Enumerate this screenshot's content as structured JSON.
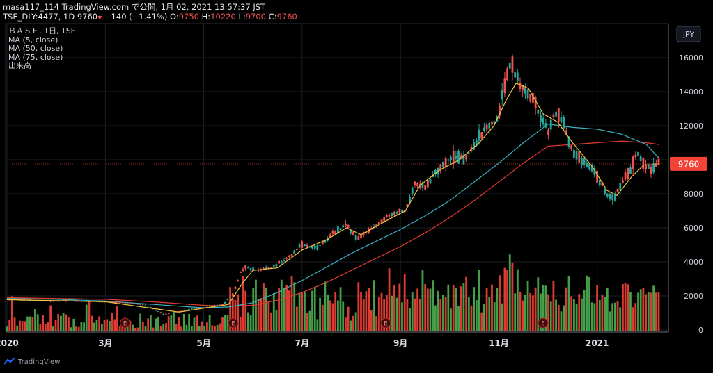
{
  "header": {
    "line1": "masa117_114 TradingView.com で公開, 1月 02, 2021 13:57:37 JST",
    "symbol": "TSE_DLY:4477, 1D 9760",
    "change": "−140 (−1.41%)",
    "o_label": "O:",
    "o_value": "9750",
    "h_label": "H:",
    "h_value": "10220",
    "l_label": "L:",
    "l_value": "9700",
    "c_label": "C:",
    "c_value": "9760"
  },
  "legend": {
    "title": "ＢＡＳＥ, 1日, TSE",
    "ma5": "MA (5, close)",
    "ma50": "MA (50, close)",
    "ma75": "MA (75, close)",
    "volume": "出来高"
  },
  "footer": {
    "brand": "TradingView"
  },
  "colors": {
    "up": "#26a69a",
    "down": "#ef5350",
    "vol_up": "#4caf50",
    "vol_down": "#f44336",
    "ma5": "#f5c842",
    "ma50": "#3bb3c3",
    "ma75": "#e53935",
    "grid": "#1c1f26",
    "price_tag": "#f44336"
  },
  "chart_data": {
    "type": "candlestick",
    "currency": "JPY",
    "last_price": 9760,
    "last_price_label": "9760",
    "x_ticks": [
      {
        "label": "2020",
        "month": 0
      },
      {
        "label": "3月",
        "month": 2
      },
      {
        "label": "5月",
        "month": 4
      },
      {
        "label": "7月",
        "month": 6
      },
      {
        "label": "9月",
        "month": 8
      },
      {
        "label": "11月",
        "month": 10
      },
      {
        "label": "2021",
        "month": 12
      }
    ],
    "y_ticks": [
      "16000",
      "14000",
      "12000",
      "10000",
      "8000",
      "6000",
      "4000",
      "2000",
      "0"
    ],
    "ylim": [
      0,
      18000
    ],
    "earnings_markers": [
      {
        "label": "E",
        "month": 2.4
      },
      {
        "label": "E",
        "month": 4.6
      },
      {
        "label": "E",
        "month": 7.7
      },
      {
        "label": "E",
        "month": 10.9
      }
    ],
    "price_path": [
      [
        0,
        1800
      ],
      [
        0.4,
        1750
      ],
      [
        0.8,
        1700
      ],
      [
        1.2,
        1720
      ],
      [
        1.6,
        1700
      ],
      [
        2.0,
        1650
      ],
      [
        2.4,
        1600
      ],
      [
        2.8,
        1500
      ],
      [
        3.0,
        1200
      ],
      [
        3.2,
        900
      ],
      [
        3.5,
        1100
      ],
      [
        3.8,
        1250
      ],
      [
        4.1,
        1350
      ],
      [
        4.4,
        1500
      ],
      [
        4.6,
        2100
      ],
      [
        4.75,
        3400
      ],
      [
        4.85,
        3700
      ],
      [
        5.1,
        3500
      ],
      [
        5.4,
        3700
      ],
      [
        5.7,
        4200
      ],
      [
        6.0,
        5000
      ],
      [
        6.3,
        4800
      ],
      [
        6.6,
        5600
      ],
      [
        6.9,
        6200
      ],
      [
        7.1,
        5400
      ],
      [
        7.4,
        5900
      ],
      [
        7.7,
        6600
      ],
      [
        7.9,
        6900
      ],
      [
        8.1,
        7000
      ],
      [
        8.3,
        8700
      ],
      [
        8.5,
        8400
      ],
      [
        8.7,
        9200
      ],
      [
        8.9,
        9800
      ],
      [
        9.1,
        10200
      ],
      [
        9.3,
        10100
      ],
      [
        9.5,
        10800
      ],
      [
        9.7,
        11800
      ],
      [
        9.9,
        12200
      ],
      [
        10.0,
        12700
      ],
      [
        10.1,
        14200
      ],
      [
        10.25,
        16000
      ],
      [
        10.35,
        14800
      ],
      [
        10.5,
        14100
      ],
      [
        10.7,
        13600
      ],
      [
        10.85,
        12500
      ],
      [
        11.0,
        11700
      ],
      [
        11.15,
        12800
      ],
      [
        11.3,
        12400
      ],
      [
        11.45,
        10800
      ],
      [
        11.6,
        10200
      ],
      [
        11.75,
        9800
      ],
      [
        11.9,
        9400
      ],
      [
        12.05,
        8800
      ],
      [
        12.2,
        7900
      ],
      [
        12.35,
        7700
      ],
      [
        12.5,
        8700
      ],
      [
        12.65,
        9300
      ],
      [
        12.8,
        10400
      ],
      [
        12.95,
        9800
      ],
      [
        13.1,
        9400
      ],
      [
        13.25,
        9760
      ]
    ],
    "ma5_path": [
      [
        0,
        1780
      ],
      [
        1,
        1720
      ],
      [
        2,
        1660
      ],
      [
        3,
        1250
      ],
      [
        3.5,
        1050
      ],
      [
        4.1,
        1320
      ],
      [
        4.5,
        1500
      ],
      [
        4.8,
        2800
      ],
      [
        5.0,
        3500
      ],
      [
        5.5,
        3650
      ],
      [
        6.0,
        4700
      ],
      [
        6.5,
        5300
      ],
      [
        6.9,
        6000
      ],
      [
        7.2,
        5600
      ],
      [
        7.7,
        6400
      ],
      [
        8.1,
        7000
      ],
      [
        8.4,
        8500
      ],
      [
        8.8,
        9400
      ],
      [
        9.2,
        10000
      ],
      [
        9.6,
        11000
      ],
      [
        9.9,
        12000
      ],
      [
        10.15,
        13500
      ],
      [
        10.35,
        14500
      ],
      [
        10.6,
        14200
      ],
      [
        10.9,
        12700
      ],
      [
        11.2,
        12200
      ],
      [
        11.5,
        11000
      ],
      [
        11.9,
        9600
      ],
      [
        12.2,
        8200
      ],
      [
        12.4,
        7900
      ],
      [
        12.7,
        9000
      ],
      [
        12.95,
        9700
      ],
      [
        13.25,
        9700
      ]
    ],
    "ma50_path": [
      [
        0,
        1850
      ],
      [
        1,
        1800
      ],
      [
        2,
        1700
      ],
      [
        3,
        1500
      ],
      [
        4,
        1300
      ],
      [
        4.5,
        1350
      ],
      [
        5,
        1600
      ],
      [
        5.5,
        2200
      ],
      [
        6,
        2900
      ],
      [
        6.5,
        3700
      ],
      [
        7,
        4500
      ],
      [
        7.5,
        5200
      ],
      [
        8,
        5900
      ],
      [
        8.5,
        6700
      ],
      [
        9,
        7600
      ],
      [
        9.5,
        8700
      ],
      [
        10,
        9800
      ],
      [
        10.5,
        11000
      ],
      [
        11,
        12100
      ],
      [
        11.5,
        11900
      ],
      [
        12,
        11800
      ],
      [
        12.5,
        11500
      ],
      [
        13,
        10900
      ],
      [
        13.25,
        10100
      ]
    ],
    "ma75_path": [
      [
        0,
        1900
      ],
      [
        1,
        1850
      ],
      [
        2,
        1800
      ],
      [
        3,
        1650
      ],
      [
        4,
        1450
      ],
      [
        4.5,
        1400
      ],
      [
        5,
        1450
      ],
      [
        5.5,
        1750
      ],
      [
        6,
        2200
      ],
      [
        6.5,
        2800
      ],
      [
        7,
        3500
      ],
      [
        7.5,
        4200
      ],
      [
        8,
        4900
      ],
      [
        8.5,
        5700
      ],
      [
        9,
        6600
      ],
      [
        9.5,
        7600
      ],
      [
        10,
        8700
      ],
      [
        10.5,
        9800
      ],
      [
        11,
        10800
      ],
      [
        11.5,
        10900
      ],
      [
        12,
        11000
      ],
      [
        12.5,
        11100
      ],
      [
        13,
        11000
      ],
      [
        13.25,
        10900
      ]
    ]
  }
}
